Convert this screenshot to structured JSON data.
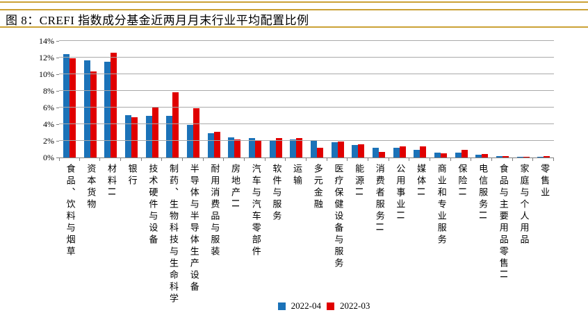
{
  "page": {
    "title": "图 8：CREFI 指数成分基金近两月月末行业平均配置比例",
    "accent_line_color": "#CBA135"
  },
  "chart_data": {
    "type": "bar",
    "title": "图 8：CREFI 指数成分基金近两月月末行业平均配置比例",
    "categories": [
      "食品、饮料与烟草",
      "资本货物",
      "材料II",
      "银行",
      "技术硬件与设备",
      "制药、生物科技与生命科学",
      "半导体与半导体生产设备",
      "耐用消费品与服装",
      "房地产II",
      "汽车与汽车零部件",
      "软件与服务",
      "运输",
      "多元金融",
      "医疗保健设备与服务",
      "能源II",
      "消费者服务II",
      "公用事业II",
      "媒体II",
      "商业和专业服务",
      "保险II",
      "电信服务II",
      "食品与主要用品零售II",
      "家庭与个人用品",
      "零售业"
    ],
    "series": [
      {
        "name": "2022-04",
        "color": "#1B72B8",
        "values": [
          12.4,
          11.7,
          11.5,
          5.1,
          5.0,
          5.0,
          3.9,
          2.9,
          2.4,
          2.3,
          2.1,
          2.2,
          2.0,
          1.8,
          1.5,
          1.2,
          1.2,
          0.9,
          0.6,
          0.6,
          0.3,
          0.2,
          0.1,
          0.1
        ]
      },
      {
        "name": "2022-03",
        "color": "#E00000",
        "values": [
          11.9,
          10.3,
          12.6,
          4.8,
          6.0,
          7.8,
          5.9,
          3.1,
          2.2,
          2.1,
          2.3,
          2.3,
          1.2,
          1.9,
          1.6,
          0.7,
          1.3,
          1.3,
          0.5,
          0.9,
          0.4,
          0.2,
          0.1,
          0.2
        ]
      }
    ],
    "ylabel": "",
    "xlabel": "",
    "ylim": [
      0,
      14
    ],
    "ytick_step": 2,
    "ytick_labels": [
      "0%",
      "2%",
      "4%",
      "6%",
      "8%",
      "10%",
      "12%",
      "14%"
    ],
    "grid": true,
    "legend_position": "bottom"
  }
}
